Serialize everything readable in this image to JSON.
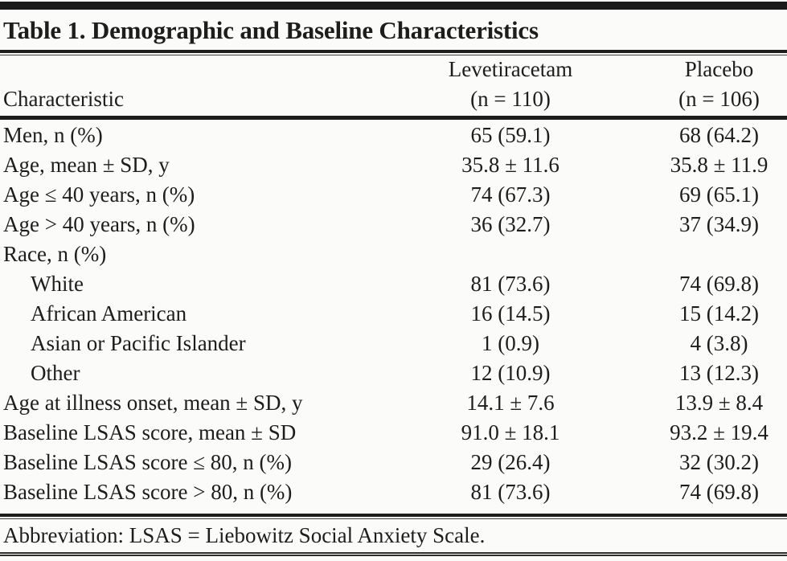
{
  "table": {
    "title": "Table 1. Demographic and Baseline Characteristics",
    "columns": {
      "characteristic": "Characteristic",
      "group1_name": "Levetiracetam",
      "group1_n": "(n = 110)",
      "group2_name": "Placebo",
      "group2_n": "(n = 106)"
    },
    "rows": [
      {
        "label": "Men, n (%)",
        "levetiracetam": "65 (59.1)",
        "placebo": "68 (64.2)"
      },
      {
        "label": "Age, mean ± SD, y",
        "levetiracetam": "35.8 ± 11.6",
        "placebo": "35.8 ± 11.9"
      },
      {
        "label": "Age ≤ 40 years, n (%)",
        "levetiracetam": "74 (67.3)",
        "placebo": "69 (65.1)"
      },
      {
        "label": "Age > 40 years, n (%)",
        "levetiracetam": "36 (32.7)",
        "placebo": "37 (34.9)"
      },
      {
        "label": "Race, n (%)",
        "levetiracetam": "",
        "placebo": ""
      },
      {
        "label": "White",
        "levetiracetam": "81 (73.6)",
        "placebo": "74 (69.8)"
      },
      {
        "label": "African American",
        "levetiracetam": "16 (14.5)",
        "placebo": "15 (14.2)"
      },
      {
        "label": "Asian or Pacific Islander",
        "levetiracetam": "1 (0.9)",
        "placebo": "4 (3.8)"
      },
      {
        "label": "Other",
        "levetiracetam": "12 (10.9)",
        "placebo": "13 (12.3)"
      },
      {
        "label": "Age at illness onset, mean ± SD, y",
        "levetiracetam": "14.1 ± 7.6",
        "placebo": "13.9 ± 8.4"
      },
      {
        "label": "Baseline LSAS score, mean ± SD",
        "levetiracetam": "91.0 ± 18.1",
        "placebo": "93.2 ± 19.4"
      },
      {
        "label": "Baseline LSAS score ≤ 80, n (%)",
        "levetiracetam": "29 (26.4)",
        "placebo": "32 (30.2)"
      },
      {
        "label": "Baseline LSAS score > 80, n (%)",
        "levetiracetam": "81 (73.6)",
        "placebo": "74 (69.8)"
      }
    ],
    "footnote": "Abbreviation: LSAS = Liebowitz Social Anxiety Scale.",
    "colors": {
      "rule": "#1d1d1d",
      "text": "#1d1d1d",
      "background": "#fbfbf9"
    }
  }
}
